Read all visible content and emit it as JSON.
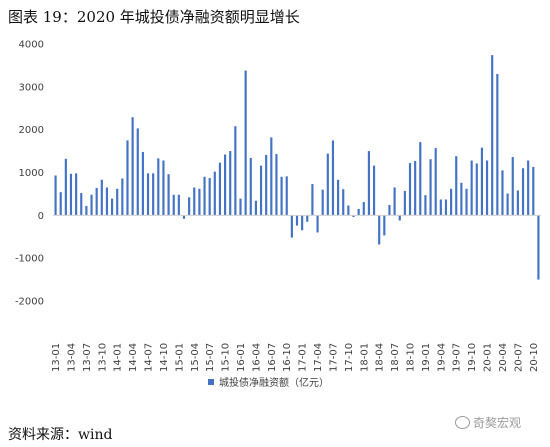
{
  "title": "图表 19：2020 年城投债净融资额明显增长",
  "source": "资料来源：wind",
  "watermark": "奇獒宏观",
  "chart_data": {
    "type": "bar",
    "bar_color": "#4472C4",
    "ylim": [
      -2000,
      4000
    ],
    "yticks": [
      -2000,
      -1000,
      0,
      1000,
      2000,
      3000,
      4000
    ],
    "grid": false,
    "legend_position": "bottom",
    "series": [
      {
        "name": "城投债净融资额（亿元）",
        "values": [
          930,
          540,
          1320,
          970,
          980,
          520,
          220,
          480,
          640,
          830,
          650,
          390,
          620,
          860,
          1750,
          2290,
          2030,
          1480,
          980,
          980,
          1330,
          1280,
          960,
          480,
          480,
          -80,
          420,
          650,
          620,
          900,
          870,
          1020,
          1230,
          1420,
          1500,
          2080,
          390,
          3380,
          1340,
          340,
          1160,
          1410,
          1820,
          1430,
          900,
          910,
          -520,
          -240,
          -350,
          -150,
          730,
          -400,
          600,
          1440,
          1750,
          830,
          610,
          230,
          -40,
          150,
          310,
          1500,
          1160,
          -680,
          -470,
          240,
          650,
          -120,
          570,
          1220,
          1270,
          1710,
          470,
          1310,
          1570,
          370,
          370,
          620,
          1380,
          760,
          620,
          1280,
          1210,
          1580,
          1280,
          3740,
          3300,
          1050,
          510,
          1360,
          580,
          1100,
          1280,
          1130,
          -1500
        ]
      }
    ],
    "x_tick_labels": [
      "13-01",
      "13-04",
      "13-07",
      "13-10",
      "14-01",
      "14-04",
      "14-07",
      "14-10",
      "15-01",
      "15-04",
      "15-07",
      "15-10",
      "16-01",
      "16-04",
      "16-07",
      "16-10",
      "17-01",
      "17-04",
      "17-07",
      "17-10",
      "18-01",
      "18-04",
      "18-07",
      "18-10",
      "19-01",
      "19-04",
      "19-07",
      "19-10",
      "20-01",
      "20-04",
      "20-07",
      "20-10"
    ]
  }
}
